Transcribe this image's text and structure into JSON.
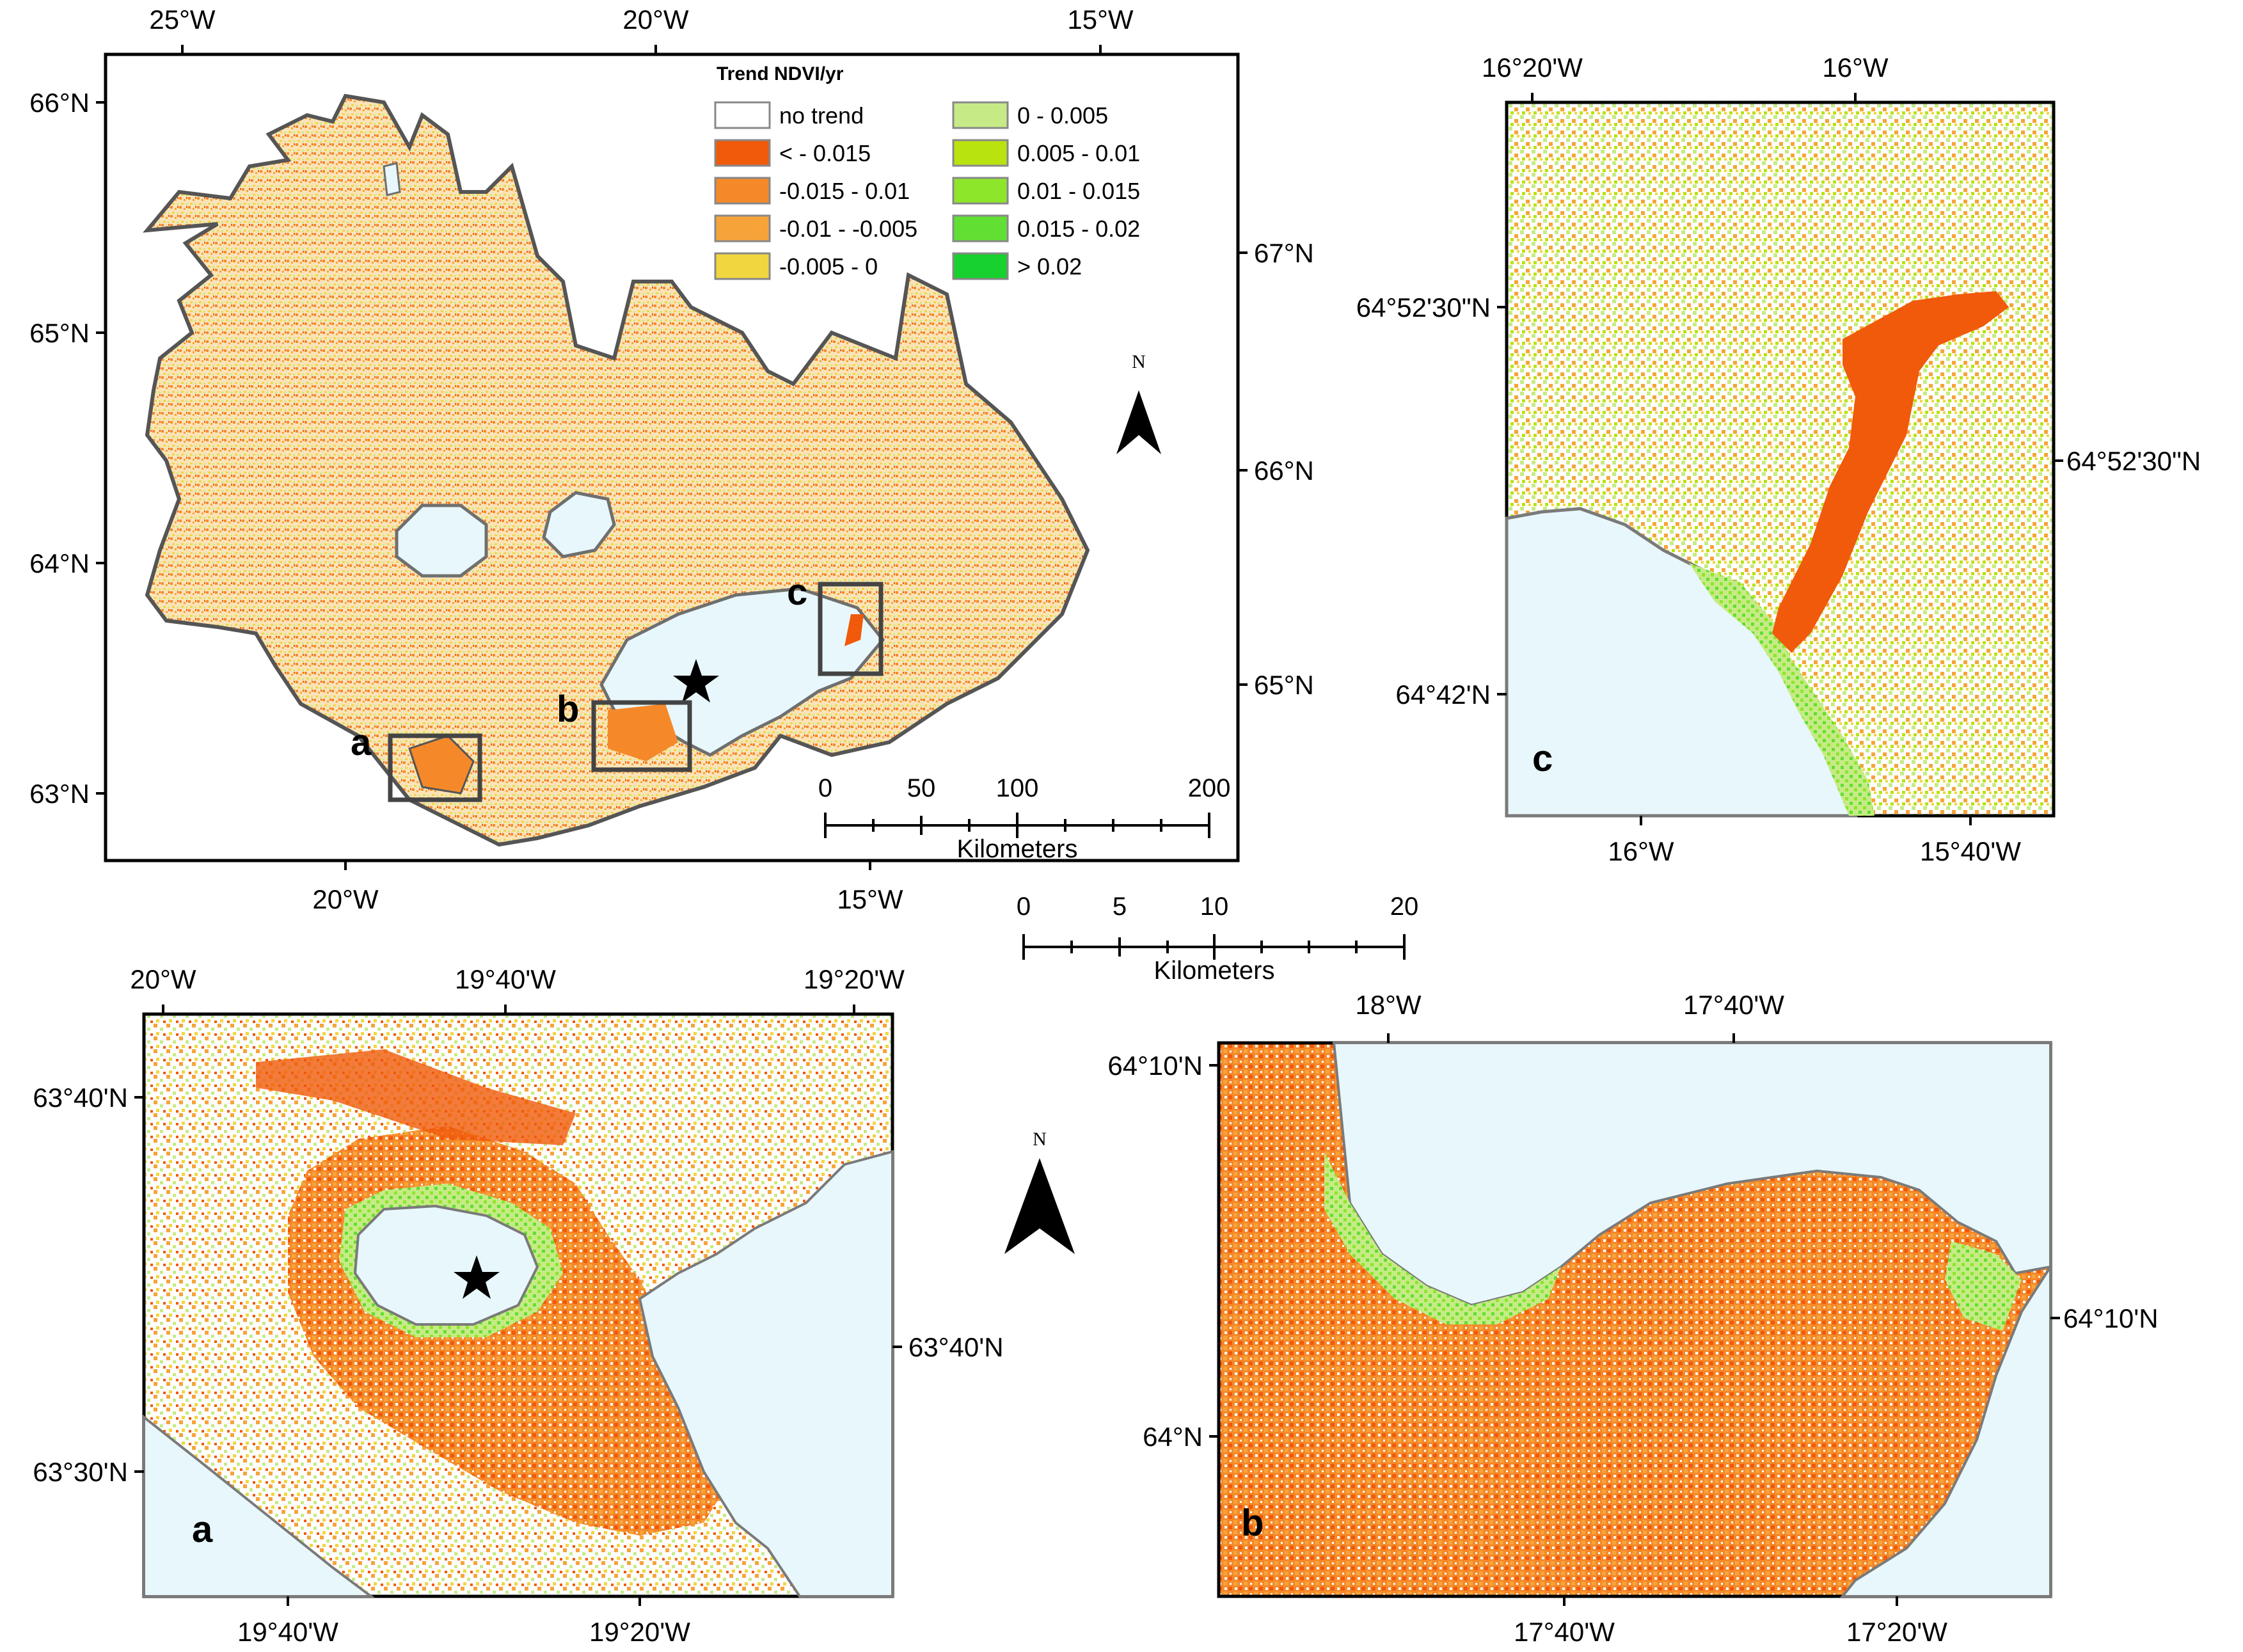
{
  "colors": {
    "water": "#e8f7fb",
    "coast": "#7a7a7a",
    "frame": "#000000",
    "orange_red": "#f05a0a",
    "orange": "#f5892a",
    "light_orange": "#f6a43a",
    "yellow": "#f2d640",
    "pale_green": "#c6eb86",
    "yellow_green": "#b9e30f",
    "green_light": "#8ee62b",
    "green": "#62df33",
    "bright_green": "#16d12e"
  },
  "main_map": {
    "top_ticks": [
      "25°W",
      "20°W",
      "15°W"
    ],
    "bottom_ticks": [
      "20°W",
      "15°W"
    ],
    "left_ticks": [
      "66°N",
      "65°N",
      "64°N",
      "63°N"
    ],
    "right_ticks": [
      "67°N",
      "66°N",
      "65°N"
    ],
    "box_labels": [
      "a",
      "b",
      "c"
    ],
    "legend": {
      "title": "Trend NDVI/yr",
      "items": [
        {
          "label": "no trend",
          "color": "#ffffff"
        },
        {
          "label": "< - 0.015",
          "color": "#f05a0a"
        },
        {
          "label": "-0.015 - 0.01",
          "color": "#f5892a"
        },
        {
          "label": "-0.01 - -0.005",
          "color": "#f6a43a"
        },
        {
          "label": "-0.005 - 0",
          "color": "#f2d640"
        },
        {
          "label": "0 - 0.005",
          "color": "#c6eb86"
        },
        {
          "label": "0.005 - 0.01",
          "color": "#b9e30f"
        },
        {
          "label": "0.01 - 0.015",
          "color": "#8ee62b"
        },
        {
          "label": "0.015 - 0.02",
          "color": "#62df33"
        },
        {
          "label": "> 0.02",
          "color": "#16d12e"
        }
      ]
    },
    "scale": {
      "ticks": [
        "0",
        "50",
        "100",
        "200"
      ],
      "unit": "Kilometers"
    },
    "north": "N"
  },
  "panel_c": {
    "letter": "c",
    "top_ticks": [
      "16°20'W",
      "16°W"
    ],
    "bottom_ticks": [
      "16°W",
      "15°40'W"
    ],
    "left_ticks": [
      "64°52'30\"N",
      "64°42'N"
    ],
    "right_ticks": [
      "64°52'30\"N"
    ]
  },
  "middle_scale": {
    "ticks": [
      "0",
      "5",
      "10",
      "20"
    ],
    "unit": "Kilometers"
  },
  "panel_a": {
    "letter": "a",
    "top_ticks": [
      "20°W",
      "19°40'W",
      "19°20'W"
    ],
    "bottom_ticks": [
      "19°40'W",
      "19°20'W"
    ],
    "left_ticks": [
      "63°40'N",
      "63°30'N"
    ],
    "right_ticks": [
      "63°40'N"
    ]
  },
  "panel_b": {
    "letter": "b",
    "top_ticks": [
      "18°W",
      "17°40'W"
    ],
    "bottom_ticks": [
      "17°40'W",
      "17°20'W"
    ],
    "left_ticks": [
      "64°10'N",
      "64°N"
    ],
    "right_ticks": [
      "64°10'N"
    ]
  },
  "north_arrow_2": "N"
}
